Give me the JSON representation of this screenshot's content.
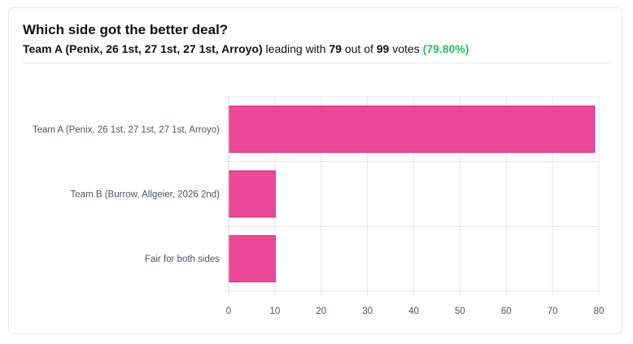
{
  "poll": {
    "question": "Which side got the better deal?",
    "leader": "Team A (Penix, 26 1st, 27 1st, 27 1st, Arroyo)",
    "leading_text": "leading with",
    "leader_votes": "79",
    "out_of_text": "out of",
    "total_votes": "99",
    "votes_text": "votes",
    "percent": "(79.80%)"
  },
  "colors": {
    "bar": "#ec4899",
    "grid": "#e5e7eb",
    "accent_green": "#22c55e"
  },
  "chart_data": {
    "type": "bar",
    "orientation": "horizontal",
    "categories": [
      "Team A (Penix, 26 1st, 27 1st, 27 1st, Arroyo)",
      "Team B (Burrow, Allgeier, 2026 2nd)",
      "Fair for both sides"
    ],
    "values": [
      79,
      10,
      10
    ],
    "xlim": [
      0,
      80
    ],
    "xticks": [
      0,
      10,
      20,
      30,
      40,
      50,
      60,
      70,
      80
    ],
    "grid": true
  }
}
